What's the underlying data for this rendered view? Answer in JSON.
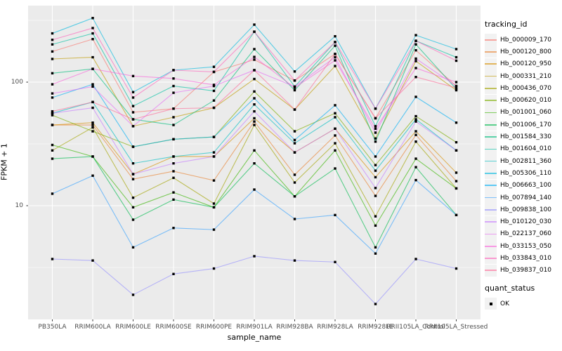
{
  "chart_data": {
    "type": "line",
    "xlabel": "sample_name",
    "ylabel": "FPKM + 1",
    "y_scale": "log10",
    "ylim": [
      1.2,
      420
    ],
    "y_ticks": [
      {
        "label": "100",
        "value": 100
      },
      {
        "label": "10",
        "value": 10
      }
    ],
    "y_minor_gridlines": [
      316.2,
      31.62,
      3.162
    ],
    "panel_bg": "#EBEBEB",
    "grid_color": "#FFFFFF",
    "point_marker": {
      "shape": "square",
      "color": "#000000",
      "size": 3.4
    },
    "line_opacity": 0.62,
    "categories": [
      "PB350LA",
      "RRIM600LA",
      "RRIM600LE",
      "RRIM600SE",
      "RRIM600PE",
      "RRIM901LA",
      "RRIM928BA",
      "RRIM928LA",
      "RRIM928LE",
      "RRII105LA_Control",
      "RRII105LA_Stressed"
    ],
    "series": [
      {
        "id": "Hb_000009_170",
        "color": "#F8766D",
        "values": [
          177,
          223,
          57,
          61,
          121,
          152,
          103,
          169,
          51,
          181,
          93
        ]
      },
      {
        "id": "Hb_000120_800",
        "color": "#EA8331",
        "values": [
          45,
          45,
          16.4,
          19,
          16,
          48,
          17.8,
          37,
          12,
          37.4,
          15.8
        ]
      },
      {
        "id": "Hb_000120_950",
        "color": "#D89000",
        "values": [
          45,
          47,
          18,
          25,
          25,
          51,
          27,
          42,
          17,
          40,
          18.5
        ]
      },
      {
        "id": "Hb_000331_210",
        "color": "#C09B00",
        "values": [
          154,
          159,
          44,
          52,
          62,
          106,
          60,
          135,
          35,
          148,
          86
        ]
      },
      {
        "id": "Hb_000436_070",
        "color": "#A3A500",
        "values": [
          28,
          43,
          11.6,
          16.8,
          10.4,
          45,
          15.4,
          32,
          8.2,
          33,
          13.8
        ]
      },
      {
        "id": "Hb_000620_010",
        "color": "#7CAE00",
        "values": [
          54,
          40,
          30,
          34.5,
          36,
          84,
          40,
          56,
          21.3,
          53,
          32.6
        ]
      },
      {
        "id": "Hb_001001_060",
        "color": "#39B600",
        "values": [
          31,
          25,
          9.7,
          12.8,
          9.7,
          28,
          11.9,
          28,
          6.9,
          24,
          13.8
        ]
      },
      {
        "id": "Hb_001006_170",
        "color": "#00BB4E",
        "values": [
          24,
          25,
          7.7,
          11.2,
          9.7,
          22,
          11.9,
          20,
          4.6,
          20.5,
          8.4
        ]
      },
      {
        "id": "Hb_001584_330",
        "color": "#00BF7D",
        "values": [
          118,
          128,
          50,
          45,
          71,
          185,
          86,
          197,
          33,
          202,
          88
        ]
      },
      {
        "id": "Hb_001604_010",
        "color": "#00C1A3",
        "values": [
          202,
          248,
          64,
          93,
          85,
          256,
          92,
          211,
          44,
          216,
          159
        ]
      },
      {
        "id": "Hb_002811_360",
        "color": "#00BFC4",
        "values": [
          56,
          69,
          22,
          25,
          27,
          66,
          32,
          52,
          19.2,
          50,
          28
        ]
      },
      {
        "id": "Hb_005306_110",
        "color": "#00BAE0",
        "values": [
          248,
          330,
          83,
          125,
          133,
          292,
          122,
          235,
          61,
          240,
          185
        ]
      },
      {
        "id": "Hb_006663_100",
        "color": "#00B0F6",
        "values": [
          75,
          96,
          30,
          34.5,
          36,
          74,
          34,
          65,
          25,
          76,
          47
        ]
      },
      {
        "id": "Hb_007894_140",
        "color": "#35A2FF",
        "values": [
          12.5,
          17.5,
          4.6,
          6.6,
          6.4,
          13.5,
          7.8,
          8.4,
          4.1,
          16.1,
          8.4
        ]
      },
      {
        "id": "Hb_009838_100",
        "color": "#9590FF",
        "values": [
          3.7,
          3.6,
          1.9,
          2.8,
          3.1,
          3.9,
          3.6,
          3.5,
          1.6,
          3.7,
          3.1
        ]
      },
      {
        "id": "Hb_010120_030",
        "color": "#C77CFF",
        "values": [
          56,
          62,
          18,
          22,
          25,
          58,
          27,
          42,
          13.9,
          48,
          28
        ]
      },
      {
        "id": "Hb_022137_060",
        "color": "#E76BF3",
        "values": [
          81,
          92,
          44,
          82,
          93,
          125,
          92,
          159,
          39,
          155,
          93
        ]
      },
      {
        "id": "Hb_033153_050",
        "color": "#FA62DB",
        "values": [
          96,
          128,
          112,
          107,
          95,
          160,
          90,
          150,
          42,
          130,
          100
        ]
      },
      {
        "id": "Hb_033843_010",
        "color": "#FF62BC",
        "values": [
          220,
          274,
          75,
          125,
          121,
          256,
          103,
          211,
          61,
          216,
          149
        ]
      },
      {
        "id": "Hb_039837_010",
        "color": "#FF6A98",
        "values": [
          58,
          69,
          50,
          61,
          62,
          125,
          60,
          169,
          51,
          110,
          90
        ]
      }
    ]
  },
  "legend": {
    "tracking_title": "tracking_id",
    "quant_title": "quant_status",
    "quant_items": [
      {
        "label": "OK",
        "marker": "black-square"
      }
    ]
  }
}
